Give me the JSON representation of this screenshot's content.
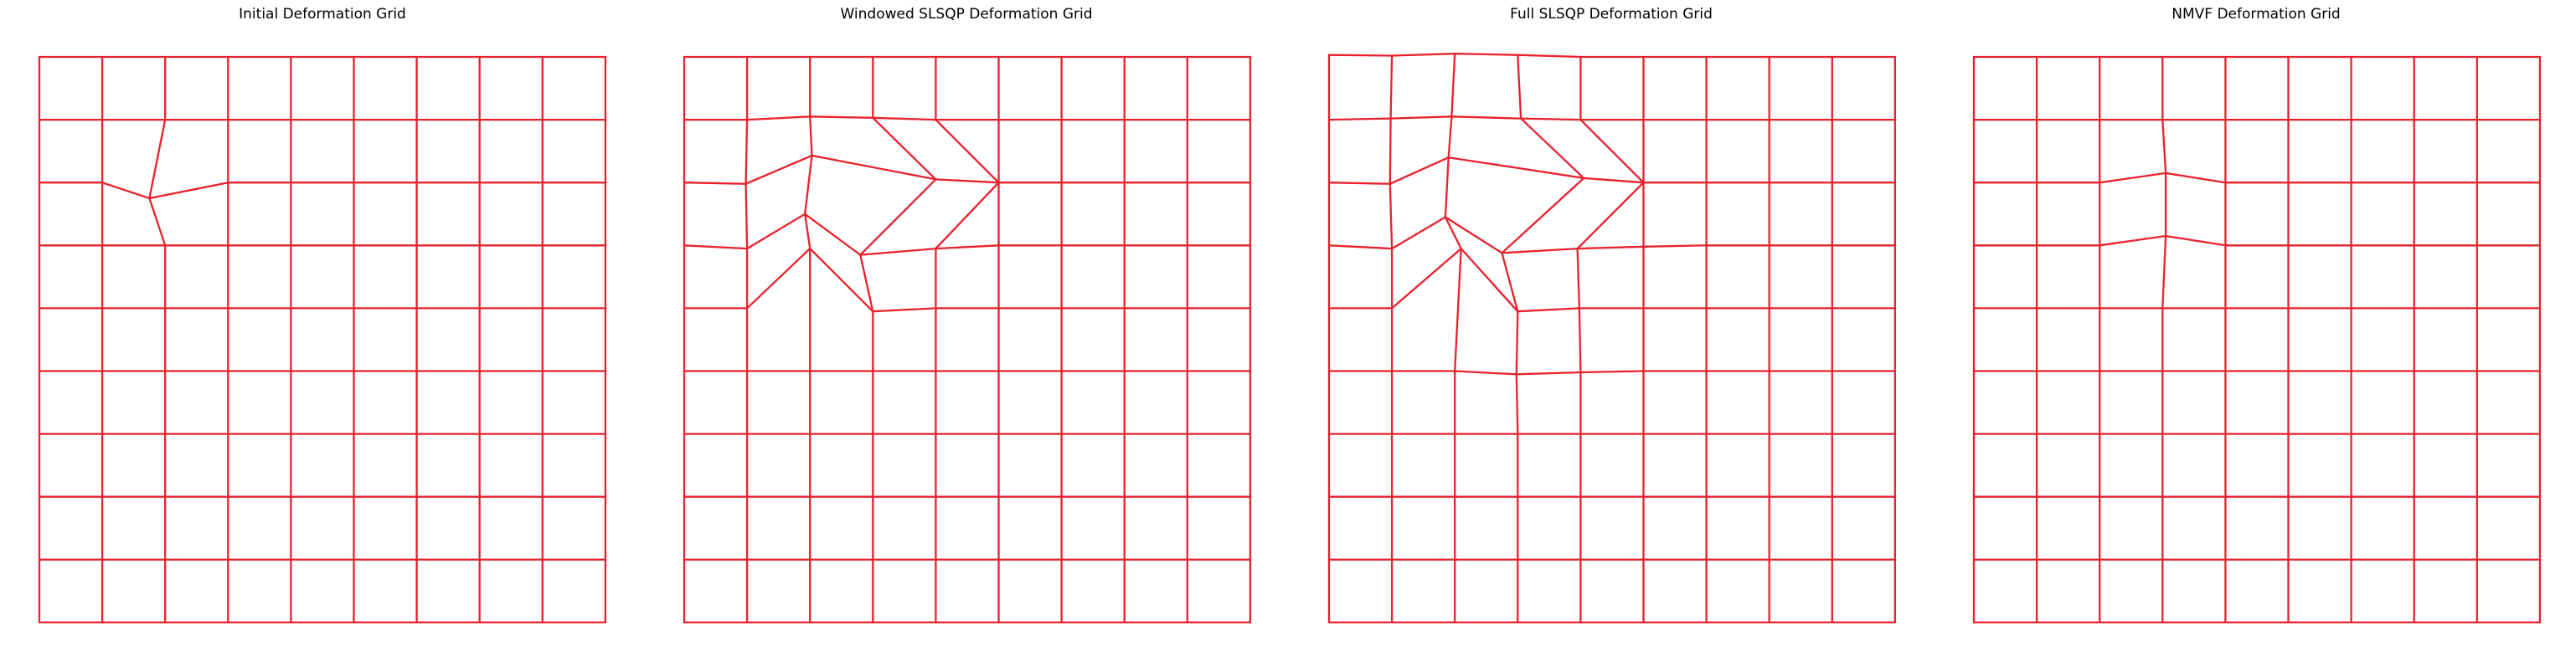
{
  "chart_data": [
    {
      "type": "line",
      "title": "Initial Deformation Grid",
      "line_color": "#e8212c",
      "grid": {
        "cols": 9,
        "rows": 9
      },
      "moved": [
        {
          "r": 2,
          "c": 2,
          "x": 1.75,
          "y": 2.25
        }
      ]
    },
    {
      "type": "line",
      "title": "Windowed SLSQP Deformation Grid",
      "line_color": "#e8212c",
      "grid": {
        "cols": 9,
        "rows": 9
      },
      "moved": [
        {
          "r": 1,
          "c": 1,
          "x": 1.0,
          "y": 1.0
        },
        {
          "r": 1,
          "c": 2,
          "x": 2.0,
          "y": 0.95
        },
        {
          "r": 1,
          "c": 3,
          "x": 3.0,
          "y": 0.97
        },
        {
          "r": 1,
          "c": 4,
          "x": 4.0,
          "y": 1.0
        },
        {
          "r": 2,
          "c": 1,
          "x": 0.98,
          "y": 2.02
        },
        {
          "r": 2,
          "c": 2,
          "x": 2.03,
          "y": 1.57
        },
        {
          "r": 2,
          "c": 3,
          "x": 4.0,
          "y": 1.95
        },
        {
          "r": 2,
          "c": 4,
          "x": 5.0,
          "y": 2.0
        },
        {
          "r": 3,
          "c": 1,
          "x": 1.0,
          "y": 3.05
        },
        {
          "r": 3,
          "c": 2,
          "x": 1.92,
          "y": 2.5
        },
        {
          "r": 3,
          "c": 3,
          "x": 2.8,
          "y": 3.15
        },
        {
          "r": 3,
          "c": 4,
          "x": 4.0,
          "y": 3.05
        },
        {
          "r": 3,
          "c": 5,
          "x": 5.0,
          "y": 3.0
        },
        {
          "r": 4,
          "c": 2,
          "x": 2.0,
          "y": 3.05
        },
        {
          "r": 4,
          "c": 3,
          "x": 3.0,
          "y": 4.05
        },
        {
          "r": 4,
          "c": 4,
          "x": 4.0,
          "y": 4.0
        }
      ]
    },
    {
      "type": "line",
      "title": "Full SLSQP Deformation Grid",
      "line_color": "#e8212c",
      "grid": {
        "cols": 9,
        "rows": 9
      },
      "moved": [
        {
          "r": 0,
          "c": 0,
          "x": 0.0,
          "y": -0.03
        },
        {
          "r": 0,
          "c": 1,
          "x": 1.0,
          "y": -0.02
        },
        {
          "r": 0,
          "c": 2,
          "x": 2.0,
          "y": -0.05
        },
        {
          "r": 0,
          "c": 3,
          "x": 3.0,
          "y": -0.03
        },
        {
          "r": 1,
          "c": 0,
          "x": 0.0,
          "y": 1.0
        },
        {
          "r": 1,
          "c": 1,
          "x": 0.98,
          "y": 0.98
        },
        {
          "r": 1,
          "c": 2,
          "x": 1.95,
          "y": 0.95
        },
        {
          "r": 1,
          "c": 3,
          "x": 3.05,
          "y": 0.98
        },
        {
          "r": 1,
          "c": 4,
          "x": 4.0,
          "y": 1.0
        },
        {
          "r": 2,
          "c": 1,
          "x": 0.97,
          "y": 2.02
        },
        {
          "r": 2,
          "c": 2,
          "x": 1.9,
          "y": 1.6
        },
        {
          "r": 2,
          "c": 3,
          "x": 4.05,
          "y": 1.93
        },
        {
          "r": 2,
          "c": 4,
          "x": 5.0,
          "y": 2.0
        },
        {
          "r": 3,
          "c": 1,
          "x": 1.0,
          "y": 3.05
        },
        {
          "r": 3,
          "c": 2,
          "x": 1.85,
          "y": 2.55
        },
        {
          "r": 3,
          "c": 3,
          "x": 2.75,
          "y": 3.12
        },
        {
          "r": 3,
          "c": 4,
          "x": 3.95,
          "y": 3.05
        },
        {
          "r": 3,
          "c": 5,
          "x": 5.0,
          "y": 3.02
        },
        {
          "r": 4,
          "c": 1,
          "x": 1.0,
          "y": 4.0
        },
        {
          "r": 4,
          "c": 2,
          "x": 2.1,
          "y": 3.05
        },
        {
          "r": 4,
          "c": 3,
          "x": 3.0,
          "y": 4.05
        },
        {
          "r": 4,
          "c": 4,
          "x": 3.98,
          "y": 4.0
        },
        {
          "r": 5,
          "c": 3,
          "x": 2.98,
          "y": 5.05
        },
        {
          "r": 5,
          "c": 4,
          "x": 4.0,
          "y": 5.02
        }
      ]
    },
    {
      "type": "line",
      "title": "NMVF Deformation Grid",
      "line_color": "#e8212c",
      "grid": {
        "cols": 9,
        "rows": 9
      },
      "moved": [
        {
          "r": 2,
          "c": 3,
          "x": 3.05,
          "y": 1.85
        },
        {
          "r": 3,
          "c": 3,
          "x": 3.05,
          "y": 2.85
        }
      ]
    }
  ]
}
